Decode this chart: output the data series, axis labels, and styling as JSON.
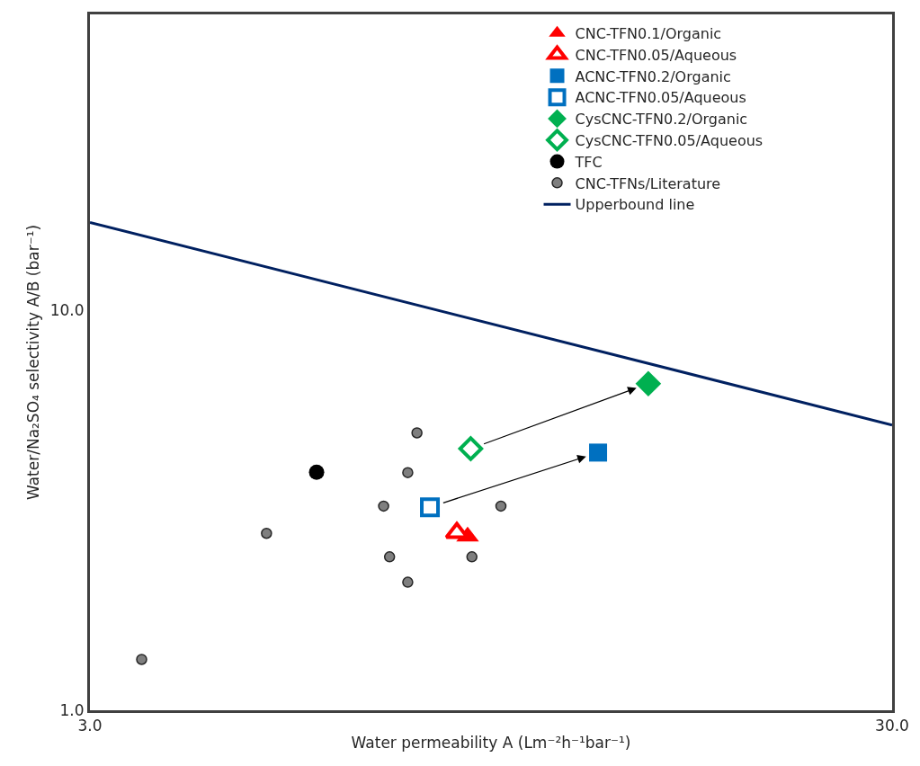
{
  "chart_data": {
    "type": "scatter",
    "xlabel": "Water permeability A (Lm⁻²h⁻¹bar⁻¹)",
    "ylabel": "Water/Na₂SO₄ selectivity A/B (bar⁻¹)",
    "log": "xy",
    "legend": "top right",
    "xlim": [
      3,
      30
    ],
    "ylim": [
      1,
      55
    ],
    "xticks": [
      {
        "value": 3,
        "label": "3.0"
      },
      {
        "value": 30,
        "label": "30.0"
      }
    ],
    "yticks": [
      {
        "value": 1,
        "label": "1.0"
      },
      {
        "value": 10,
        "label": "10.0"
      }
    ],
    "series": [
      {
        "name": "CNC-TFN0.1/Organic",
        "color": "#ff0000",
        "marker": "triangle",
        "x": [
          8.87
        ],
        "values": [
          2.72
        ]
      },
      {
        "name": "CNC-TFN0.05/Aqueous",
        "color": "#ff0000",
        "marker": "triangle-open",
        "x": [
          8.6
        ],
        "values": [
          2.78
        ]
      },
      {
        "name": "ACNC-TFN0.2/Organic",
        "color": "#0070c0",
        "marker": "square",
        "x": [
          12.9
        ],
        "values": [
          4.41
        ]
      },
      {
        "name": "ACNC-TFN0.05/Aqueous",
        "color": "#0070c0",
        "marker": "square-open",
        "x": [
          7.96
        ],
        "values": [
          3.22
        ]
      },
      {
        "name": "CysCNC-TFN0.2/Organic",
        "color": "#00b050",
        "marker": "diamond",
        "x": [
          14.9
        ],
        "values": [
          6.56
        ]
      },
      {
        "name": "CysCNC-TFN0.05/Aqueous",
        "color": "#00b050",
        "marker": "diamond-open",
        "x": [
          8.95
        ],
        "values": [
          4.51
        ]
      },
      {
        "name": "TFC",
        "color": "#000000",
        "marker": "circle",
        "x": [
          5.75
        ],
        "values": [
          3.94
        ]
      },
      {
        "name": "CNC-TFNs/Literature",
        "color": "#7f7f7f",
        "marker": "circle",
        "x": [
          7.67,
          7.47,
          6.97,
          9.76,
          4.98,
          7.09,
          8.98,
          7.47,
          3.48
        ],
        "values": [
          4.94,
          3.93,
          3.24,
          3.24,
          2.77,
          2.42,
          2.42,
          2.09,
          1.34
        ]
      },
      {
        "name": "Upperbound line",
        "type": "line",
        "color": "#002060",
        "marker": "none",
        "line_style": "solid",
        "x": [
          3,
          30
        ],
        "values": [
          16.6,
          5.17
        ]
      }
    ]
  }
}
